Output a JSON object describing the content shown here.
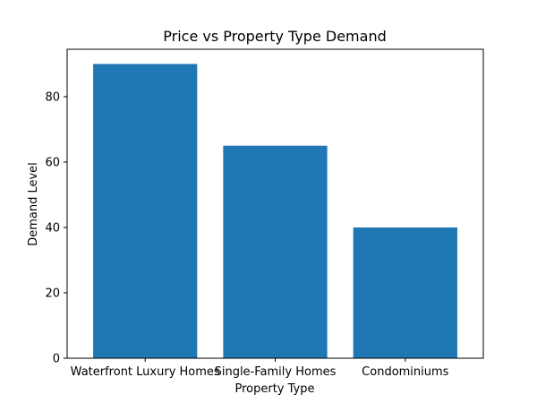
{
  "chart_data": {
    "type": "bar",
    "title": "Price vs Property Type Demand",
    "xlabel": "Property Type",
    "ylabel": "Demand Level",
    "categories": [
      "Waterfront Luxury Homes",
      "Single-Family Homes",
      "Condominiums"
    ],
    "values": [
      90,
      65,
      40
    ],
    "ylim": [
      0,
      94.5
    ],
    "yticks": [
      0,
      20,
      40,
      60,
      80
    ],
    "grid": false,
    "legend": "none",
    "bar_color": "#1f77b4"
  }
}
